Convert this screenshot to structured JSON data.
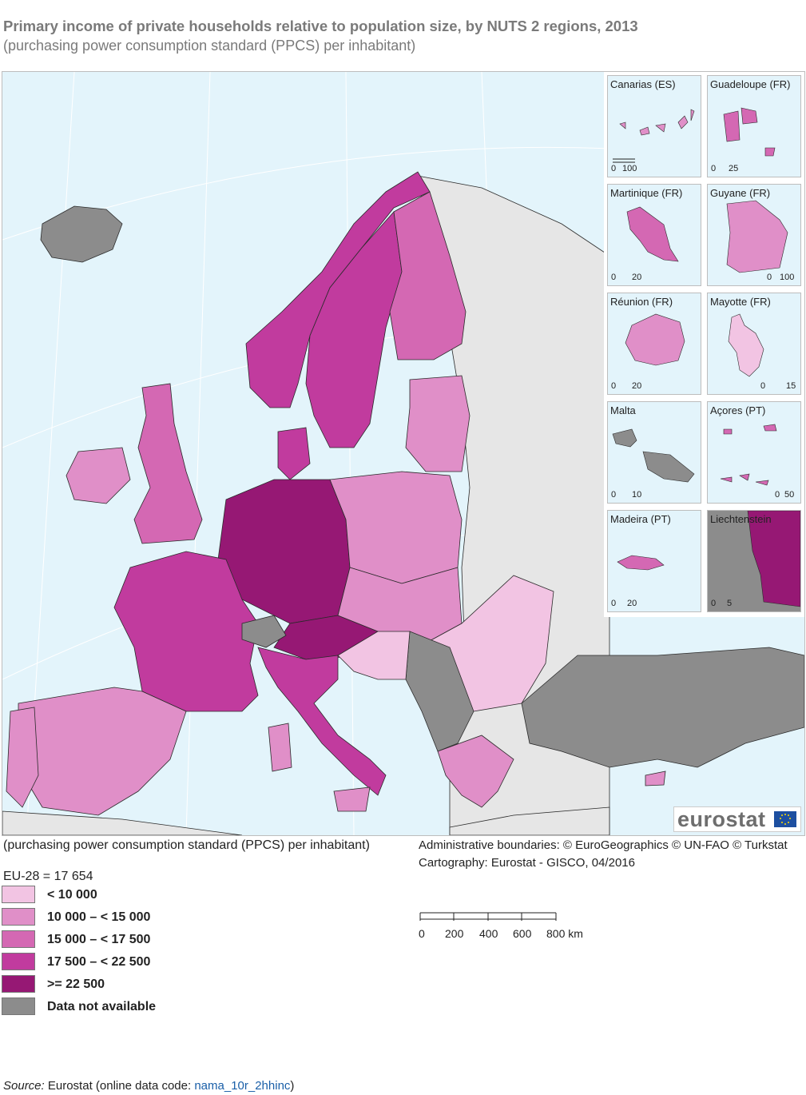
{
  "title": "Primary income of private households relative to population size, by NUTS 2 regions, 2013",
  "subtitle": "(purchasing power consumption standard (PPCS) per inhabitant)",
  "colors": {
    "sea": "#e3f4fb",
    "non_eu_land": "#e6e6e6",
    "class_1": "#f2c4e3",
    "class_2": "#e08fc8",
    "class_3": "#d468b3",
    "class_4": "#c13b9e",
    "class_5": "#961874",
    "no_data": "#8c8c8c",
    "border": "#2a2a2a"
  },
  "insets": [
    {
      "name": "Canarias (ES)",
      "scale": [
        "0",
        "100"
      ]
    },
    {
      "name": "Guadeloupe (FR)",
      "scale": [
        "0",
        "25"
      ]
    },
    {
      "name": "Martinique (FR)",
      "scale": [
        "0",
        "20"
      ]
    },
    {
      "name": "Guyane (FR)",
      "scale": [
        "0",
        "100"
      ]
    },
    {
      "name": "Réunion (FR)",
      "scale": [
        "0",
        "20"
      ]
    },
    {
      "name": "Mayotte (FR)",
      "scale": [
        "0",
        "15"
      ]
    },
    {
      "name": "Malta",
      "scale": [
        "0",
        "10"
      ]
    },
    {
      "name": "Açores (PT)",
      "scale": [
        "0",
        "50"
      ]
    },
    {
      "name": "Madeira (PT)",
      "scale": [
        "0",
        "20"
      ]
    },
    {
      "name": "Liechtenstein",
      "scale": [
        "0",
        "5"
      ]
    }
  ],
  "logo": {
    "text": "eurostat",
    "icon": "eu-flag-icon"
  },
  "unit_note": "(purchasing power consumption standard (PPCS) per inhabitant)",
  "admin_boundaries": "Administrative boundaries: © EuroGeographics © UN-FAO © Turkstat",
  "cartography": "Cartography: Eurostat - GISCO, 04/2016",
  "eu_average": "EU-28 = 17 654",
  "legend": [
    {
      "label": "< 10 000",
      "color": "#f2c4e3"
    },
    {
      "label": "10 000 – < 15 000",
      "color": "#e08fc8"
    },
    {
      "label": "15 000 – < 17 500",
      "color": "#d468b3"
    },
    {
      "label": "17 500 – < 22 500",
      "color": "#c13b9e"
    },
    {
      "label": ">= 22 500",
      "color": "#961874"
    },
    {
      "label": "Data not available",
      "color": "#8c8c8c"
    }
  ],
  "km_scale": {
    "ticks": [
      "0",
      "200",
      "400",
      "600",
      "800 km"
    ]
  },
  "source": {
    "label": "Source:",
    "text": " Eurostat (online data code: ",
    "code": "nama_10r_2hhinc",
    "close": ")"
  }
}
